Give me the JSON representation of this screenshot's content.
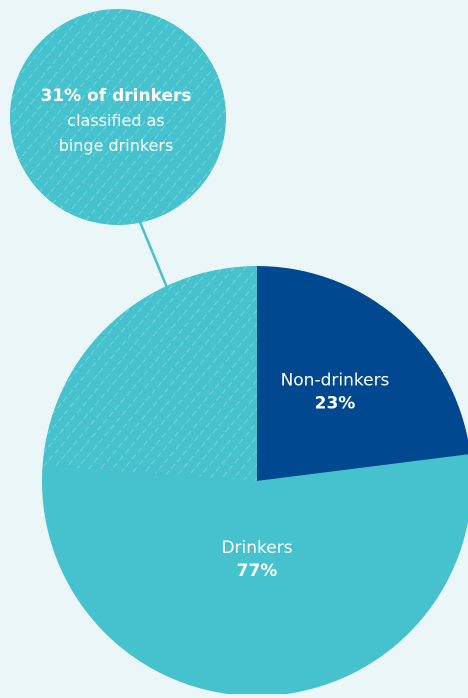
{
  "chart_data": {
    "type": "pie",
    "slices": [
      {
        "label": "Non-drinkers",
        "value_label": "23%",
        "value": 23,
        "color": "#004990"
      },
      {
        "label": "Drinkers",
        "value_label": "77%",
        "value": 77,
        "color": "#45c2cd"
      }
    ],
    "subset": {
      "of": "Drinkers",
      "value": 31,
      "unit": "% of drinkers",
      "pattern": "diagonal-hatch"
    },
    "callout": {
      "bold_text": "31% of drinkers",
      "line2": "classified as",
      "line3": "binge drinkers",
      "color": "#45c2cd"
    }
  },
  "colors": {
    "background": "#eaf6f7",
    "hatch_stroke": "#8fdbe1",
    "label_text": "#ffffff"
  }
}
